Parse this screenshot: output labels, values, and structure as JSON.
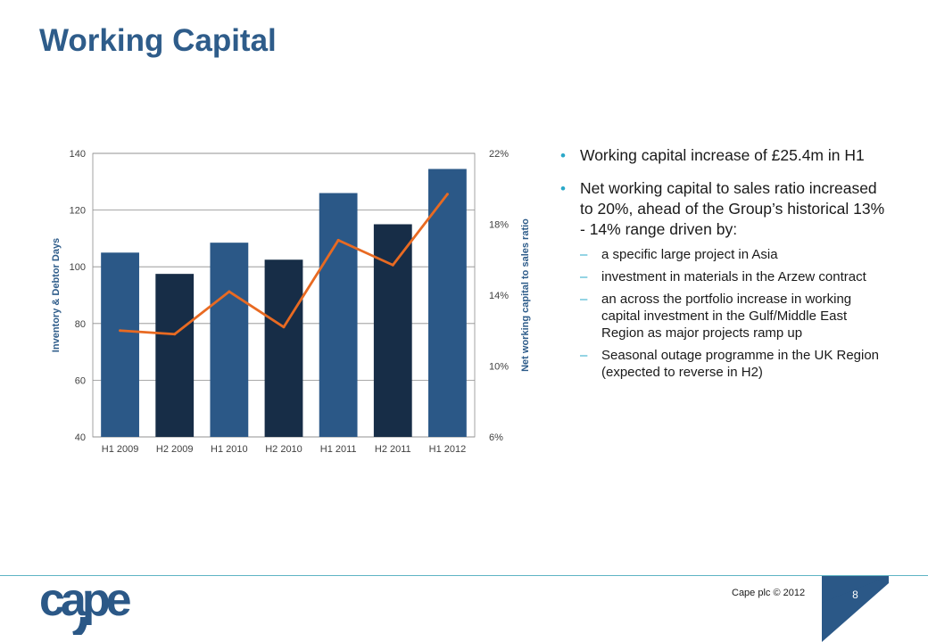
{
  "slide": {
    "title": "Working Capital",
    "footer": "Cape plc © 2012",
    "page_number": "8",
    "logo_text": "cape"
  },
  "bullets": [
    {
      "text": "Working capital increase of £25.4m in H1",
      "subs": []
    },
    {
      "text": "Net working capital to sales ratio increased to 20%, ahead of the Group’s historical 13% - 14% range driven by:",
      "subs": [
        "a specific large project in Asia",
        "investment in materials in the Arzew contract",
        "an across the portfolio increase in working capital investment in the Gulf/Middle East Region as major projects ramp up",
        "Seasonal outage programme in the UK Region (expected to reverse in H2)"
      ]
    }
  ],
  "colors": {
    "title": "#2e5c8a",
    "bar_h1": "#2b5887",
    "bar_h2": "#172d47",
    "line": "#e86a22",
    "bullet_marker": "#2aa8c8",
    "footer_line": "#5fb4c4",
    "page_tab": "#2b5887"
  },
  "chart_data": {
    "type": "bar",
    "categories": [
      "H1 2009",
      "H2 2009",
      "H1 2010",
      "H2 2010",
      "H1 2011",
      "H2 2011",
      "H1 2012"
    ],
    "series": [
      {
        "name": "",
        "type": "bar",
        "axis": "left",
        "values": [
          105,
          97.5,
          108.5,
          102.5,
          126,
          115,
          134.5
        ]
      },
      {
        "name": "",
        "type": "line",
        "axis": "right",
        "values": [
          12.0,
          11.8,
          14.2,
          12.2,
          17.1,
          15.7,
          19.7
        ],
        "unit": "%"
      }
    ],
    "ylabel": "Inventory & Debtor Days",
    "y2label": "Net working capital to sales ratio",
    "ylim": [
      40,
      140
    ],
    "yticks": [
      40,
      60,
      80,
      100,
      120,
      140
    ],
    "y2lim": [
      6,
      22
    ],
    "y2ticks": [
      "6%",
      "10%",
      "14%",
      "18%",
      "22%"
    ],
    "grid": true,
    "legend": "none"
  }
}
